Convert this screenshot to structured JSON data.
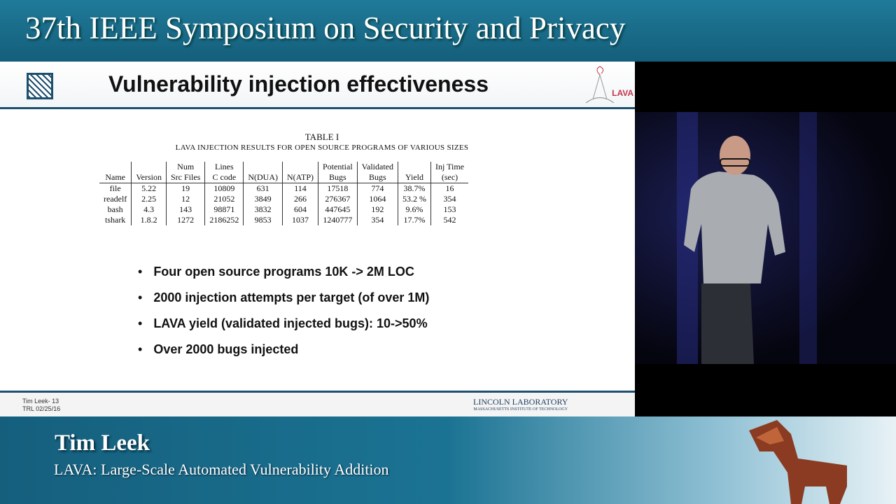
{
  "banner": {
    "title": "37th IEEE Symposium on Security and Privacy"
  },
  "slide": {
    "title": "Vulnerability injection effectiveness",
    "lava_logo": "LAVA",
    "table": {
      "caption": "TABLE I",
      "subtitle": "LAVA INJECTION RESULTS FOR OPEN SOURCE PROGRAMS OF VARIOUS SIZES",
      "headers_top": [
        "",
        "",
        "Num",
        "Lines",
        "",
        "",
        "Potential",
        "Validated",
        "",
        "Inj Time"
      ],
      "headers_bottom": [
        "Name",
        "Version",
        "Src Files",
        "C code",
        "N(DUA)",
        "N(ATP)",
        "Bugs",
        "Bugs",
        "Yield",
        "(sec)"
      ],
      "rows": [
        [
          "file",
          "5.22",
          "19",
          "10809",
          "631",
          "114",
          "17518",
          "774",
          "38.7%",
          "16"
        ],
        [
          "readelf",
          "2.25",
          "12",
          "21052",
          "3849",
          "266",
          "276367",
          "1064",
          "53.2 %",
          "354"
        ],
        [
          "bash",
          "4.3",
          "143",
          "98871",
          "3832",
          "604",
          "447645",
          "192",
          "9.6%",
          "153"
        ],
        [
          "tshark",
          "1.8.2",
          "1272",
          "2186252",
          "9853",
          "1037",
          "1240777",
          "354",
          "17.7%",
          "542"
        ]
      ]
    },
    "bullets": [
      "Four open source programs 10K -> 2M LOC",
      "2000 injection attempts per target (of over 1M)",
      "LAVA yield (validated injected bugs): 10->50%",
      "Over 2000 bugs injected"
    ],
    "footer": {
      "left1": "Tim Leek- 13",
      "left2": "TRL 02/25/16",
      "right1": "LINCOLN LABORATORY",
      "right2": "MASSACHUSETTS INSTITUTE OF TECHNOLOGY"
    }
  },
  "lower_third": {
    "name": "Tim Leek",
    "talk": "LAVA: Large-Scale Automated Vulnerability Addition"
  }
}
